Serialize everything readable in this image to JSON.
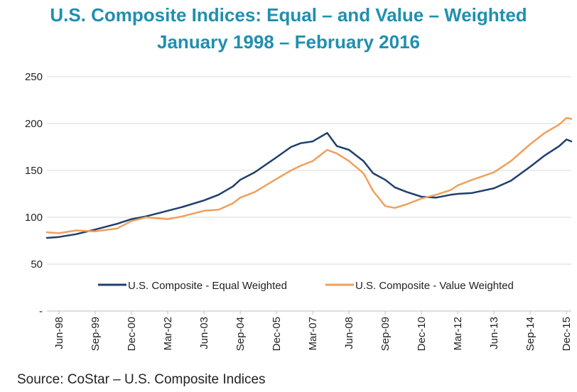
{
  "title_line1": "U.S. Composite Indices: Equal – and Value – Weighted",
  "title_line2": "January 1998 – February 2016",
  "source": "Source: CoStar – U.S. Composite Indices",
  "colors": {
    "equal": "#1f3f6b",
    "value": "#f0a05c",
    "title": "#1f8fb0",
    "grid": "#d9d9d9"
  },
  "chart_data": {
    "type": "line",
    "y_ticks": [
      "250",
      "200",
      "150",
      "100",
      "50",
      "-"
    ],
    "y_tick_values": [
      250,
      200,
      150,
      100,
      50,
      0
    ],
    "ylim": [
      0,
      250
    ],
    "grid": true,
    "legend_position": "inside-bottom",
    "x_tick_labels": [
      "Jun-98",
      "Sep-99",
      "Dec-00",
      "Mar-02",
      "Jun-03",
      "Sep-04",
      "Dec-05",
      "Mar-07",
      "Jun-08",
      "Sep-09",
      "Dec-10",
      "Mar-12",
      "Jun-13",
      "Sep-14",
      "Dec-15"
    ],
    "x_tick_dates": [
      "1998-06",
      "1999-09",
      "2000-12",
      "2002-03",
      "2003-06",
      "2004-09",
      "2005-12",
      "2007-03",
      "2008-06",
      "2009-09",
      "2010-12",
      "2012-03",
      "2013-06",
      "2014-09",
      "2015-12"
    ],
    "xlim": [
      "1998-01",
      "2016-02"
    ],
    "series": [
      {
        "name": "U.S. Composite - Equal Weighted",
        "points": [
          [
            "1998-01",
            78
          ],
          [
            "1998-06",
            79
          ],
          [
            "1999-01",
            82
          ],
          [
            "1999-09",
            87
          ],
          [
            "2000-06",
            93
          ],
          [
            "2000-12",
            98
          ],
          [
            "2001-06",
            101
          ],
          [
            "2002-03",
            107
          ],
          [
            "2002-09",
            111
          ],
          [
            "2003-06",
            118
          ],
          [
            "2003-12",
            124
          ],
          [
            "2004-06",
            133
          ],
          [
            "2004-09",
            140
          ],
          [
            "2005-03",
            148
          ],
          [
            "2005-12",
            164
          ],
          [
            "2006-06",
            175
          ],
          [
            "2006-10",
            179
          ],
          [
            "2007-03",
            181
          ],
          [
            "2007-09",
            190
          ],
          [
            "2008-01",
            176
          ],
          [
            "2008-06",
            172
          ],
          [
            "2008-12",
            160
          ],
          [
            "2009-04",
            147
          ],
          [
            "2009-09",
            140
          ],
          [
            "2010-01",
            132
          ],
          [
            "2010-06",
            127
          ],
          [
            "2010-12",
            122
          ],
          [
            "2011-06",
            121
          ],
          [
            "2011-12",
            124
          ],
          [
            "2012-03",
            125
          ],
          [
            "2012-09",
            126
          ],
          [
            "2013-06",
            131
          ],
          [
            "2014-01",
            139
          ],
          [
            "2014-09",
            154
          ],
          [
            "2015-03",
            166
          ],
          [
            "2015-09",
            176
          ],
          [
            "2015-12",
            183
          ],
          [
            "2016-02",
            181
          ]
        ]
      },
      {
        "name": "U.S. Composite - Value Weighted",
        "points": [
          [
            "1998-01",
            84
          ],
          [
            "1998-06",
            83
          ],
          [
            "1999-01",
            86
          ],
          [
            "1999-09",
            85
          ],
          [
            "2000-06",
            88
          ],
          [
            "2000-12",
            96
          ],
          [
            "2001-06",
            100
          ],
          [
            "2002-03",
            98
          ],
          [
            "2002-09",
            101
          ],
          [
            "2003-06",
            107
          ],
          [
            "2003-12",
            108
          ],
          [
            "2004-06",
            115
          ],
          [
            "2004-09",
            121
          ],
          [
            "2005-03",
            127
          ],
          [
            "2005-12",
            141
          ],
          [
            "2006-06",
            150
          ],
          [
            "2006-10",
            155
          ],
          [
            "2007-03",
            160
          ],
          [
            "2007-09",
            172
          ],
          [
            "2008-01",
            168
          ],
          [
            "2008-06",
            160
          ],
          [
            "2008-12",
            147
          ],
          [
            "2009-04",
            128
          ],
          [
            "2009-09",
            112
          ],
          [
            "2010-01",
            110
          ],
          [
            "2010-06",
            114
          ],
          [
            "2010-12",
            120
          ],
          [
            "2011-06",
            124
          ],
          [
            "2011-12",
            129
          ],
          [
            "2012-03",
            134
          ],
          [
            "2012-09",
            140
          ],
          [
            "2013-06",
            148
          ],
          [
            "2014-01",
            160
          ],
          [
            "2014-09",
            178
          ],
          [
            "2015-03",
            190
          ],
          [
            "2015-09",
            199
          ],
          [
            "2015-12",
            206
          ],
          [
            "2016-02",
            205
          ]
        ]
      }
    ]
  }
}
